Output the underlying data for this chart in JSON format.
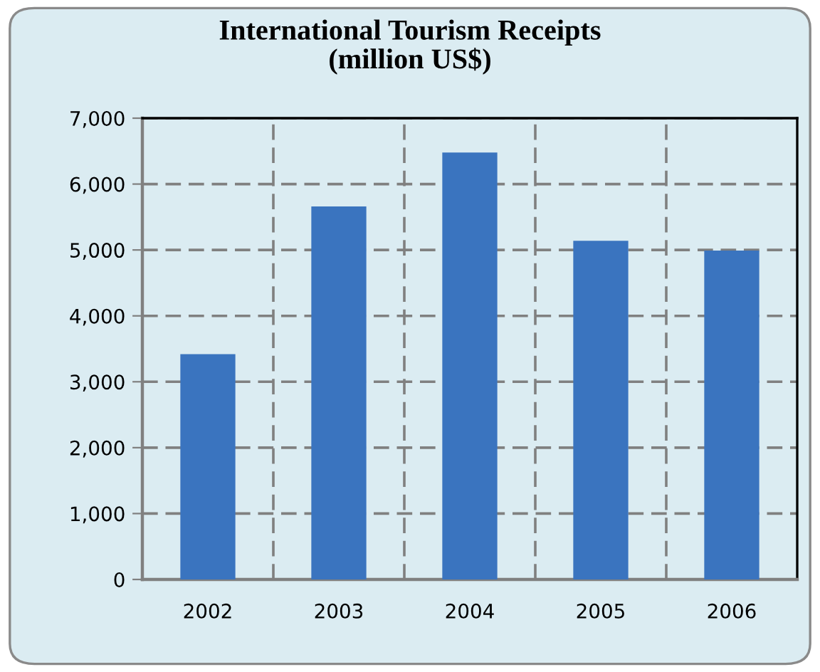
{
  "chart_data": {
    "type": "bar",
    "title": "International Tourism Receipts\n(million US$)",
    "categories": [
      "2002",
      "2003",
      "2004",
      "2005",
      "2006"
    ],
    "values": [
      3420,
      5660,
      6480,
      5140,
      4990
    ],
    "color": "#3a74bf",
    "ylim": [
      0,
      7000
    ],
    "yticks": [
      {
        "value": 0,
        "label": "0"
      },
      {
        "value": 1000,
        "label": "1,000"
      },
      {
        "value": 2000,
        "label": "2,000"
      },
      {
        "value": 3000,
        "label": "3,000"
      },
      {
        "value": 4000,
        "label": "4,000"
      },
      {
        "value": 5000,
        "label": "5,000"
      },
      {
        "value": 6000,
        "label": "6,000"
      },
      {
        "value": 7000,
        "label": "7,000"
      }
    ],
    "grid": true
  }
}
